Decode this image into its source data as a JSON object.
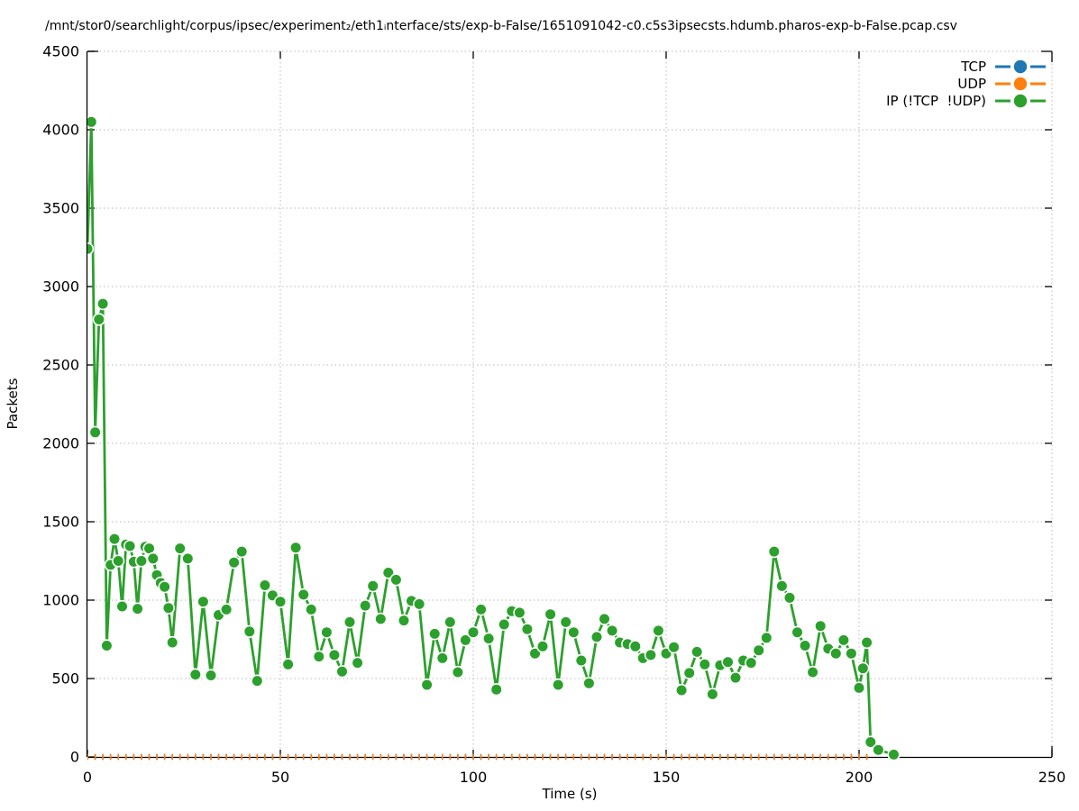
{
  "chart_data": {
    "type": "line",
    "title": "/mnt/stor0/searchlight/corpus/ipsec/experiment₂/eth1ᵢnterface/sts/exp-b-False/1651091042-c0.c5s3ipsecsts.hdumb.pharos-exp-b-False.pcap.csv",
    "xlabel": "Time (s)",
    "ylabel": "Packets",
    "xlim": [
      0,
      250
    ],
    "ylim": [
      0,
      4500
    ],
    "x_ticks": [
      0,
      50,
      100,
      150,
      200,
      250
    ],
    "y_ticks": [
      0,
      500,
      1000,
      1500,
      2000,
      2500,
      3000,
      3500,
      4000,
      4500
    ],
    "grid": true,
    "grid_color": "#b8b8b8",
    "axis_color": "#000000",
    "legend_position": "top-right inside, no box",
    "series": [
      {
        "name": "TCP",
        "color": "#1f77b4",
        "style": "linespoints",
        "points_compact": {
          "x_start": 0,
          "x_end": 202,
          "x_step": 2,
          "y_constant": 0
        },
        "note": "all samples at 0 packets; hidden underneath UDP baseline markers"
      },
      {
        "name": "UDP",
        "color": "#ff7f0e",
        "style": "linespoints",
        "points_compact": {
          "x_start": 0,
          "x_end": 202,
          "x_step": 2,
          "y_constant": 0
        },
        "note": "all samples at 0 packets; visible as small orange dashes on the baseline"
      },
      {
        "name": "IP (!TCP  !UDP)",
        "color": "#2ca02c",
        "style": "linespoints",
        "points": [
          [
            0,
            3240
          ],
          [
            1,
            4050
          ],
          [
            2,
            2070
          ],
          [
            3,
            2790
          ],
          [
            4,
            2890
          ],
          [
            5,
            710
          ],
          [
            6,
            1225
          ],
          [
            7,
            1390
          ],
          [
            8,
            1250
          ],
          [
            9,
            960
          ],
          [
            10,
            1355
          ],
          [
            11,
            1345
          ],
          [
            12,
            1245
          ],
          [
            13,
            945
          ],
          [
            14,
            1250
          ],
          [
            15,
            1340
          ],
          [
            16,
            1330
          ],
          [
            17,
            1265
          ],
          [
            18,
            1160
          ],
          [
            19,
            1110
          ],
          [
            20,
            1085
          ],
          [
            21,
            950
          ],
          [
            22,
            730
          ],
          [
            24,
            1330
          ],
          [
            26,
            1265
          ],
          [
            28,
            525
          ],
          [
            30,
            990
          ],
          [
            32,
            520
          ],
          [
            34,
            905
          ],
          [
            36,
            940
          ],
          [
            38,
            1240
          ],
          [
            40,
            1310
          ],
          [
            42,
            800
          ],
          [
            44,
            485
          ],
          [
            46,
            1095
          ],
          [
            48,
            1030
          ],
          [
            50,
            990
          ],
          [
            52,
            590
          ],
          [
            54,
            1335
          ],
          [
            56,
            1035
          ],
          [
            58,
            940
          ],
          [
            60,
            640
          ],
          [
            62,
            795
          ],
          [
            64,
            650
          ],
          [
            66,
            545
          ],
          [
            68,
            860
          ],
          [
            70,
            600
          ],
          [
            72,
            965
          ],
          [
            74,
            1090
          ],
          [
            76,
            880
          ],
          [
            78,
            1175
          ],
          [
            80,
            1130
          ],
          [
            82,
            870
          ],
          [
            84,
            995
          ],
          [
            86,
            975
          ],
          [
            88,
            460
          ],
          [
            90,
            785
          ],
          [
            92,
            630
          ],
          [
            94,
            860
          ],
          [
            96,
            540
          ],
          [
            98,
            745
          ],
          [
            100,
            795
          ],
          [
            102,
            940
          ],
          [
            104,
            755
          ],
          [
            106,
            430
          ],
          [
            108,
            845
          ],
          [
            110,
            930
          ],
          [
            112,
            920
          ],
          [
            114,
            815
          ],
          [
            116,
            660
          ],
          [
            118,
            705
          ],
          [
            120,
            910
          ],
          [
            122,
            460
          ],
          [
            124,
            860
          ],
          [
            126,
            795
          ],
          [
            128,
            615
          ],
          [
            130,
            470
          ],
          [
            132,
            765
          ],
          [
            134,
            880
          ],
          [
            136,
            805
          ],
          [
            138,
            730
          ],
          [
            140,
            720
          ],
          [
            142,
            705
          ],
          [
            144,
            630
          ],
          [
            146,
            650
          ],
          [
            148,
            805
          ],
          [
            150,
            660
          ],
          [
            152,
            700
          ],
          [
            154,
            425
          ],
          [
            156,
            535
          ],
          [
            158,
            670
          ],
          [
            160,
            590
          ],
          [
            162,
            400
          ],
          [
            164,
            585
          ],
          [
            166,
            605
          ],
          [
            168,
            505
          ],
          [
            170,
            615
          ],
          [
            172,
            600
          ],
          [
            174,
            680
          ],
          [
            176,
            760
          ],
          [
            178,
            1310
          ],
          [
            180,
            1090
          ],
          [
            182,
            1015
          ],
          [
            184,
            795
          ],
          [
            186,
            710
          ],
          [
            188,
            540
          ],
          [
            190,
            835
          ],
          [
            192,
            690
          ],
          [
            194,
            660
          ],
          [
            196,
            745
          ],
          [
            198,
            660
          ],
          [
            200,
            440
          ],
          [
            201,
            565
          ],
          [
            202,
            730
          ],
          [
            203,
            95
          ],
          [
            205,
            45
          ],
          [
            209,
            15
          ]
        ]
      }
    ]
  }
}
